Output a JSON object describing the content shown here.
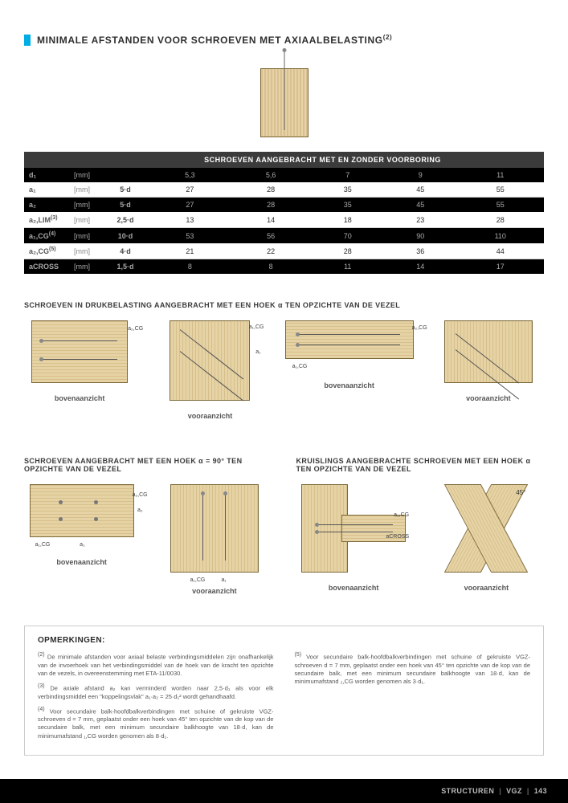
{
  "title": "MINIMALE AFSTANDEN VOOR SCHROEVEN MET AXIAALBELASTING",
  "title_sup": "(2)",
  "table": {
    "header": "SCHROEVEN AANGEBRACHT MET EN ZONDER VOORBORING",
    "cols": [
      "5,3",
      "5,6",
      "7",
      "9",
      "11"
    ],
    "rows": [
      {
        "label": "d₁",
        "unit": "[mm]",
        "formula": "",
        "vals": [
          "5,3",
          "5,6",
          "7",
          "9",
          "11"
        ],
        "dark": true
      },
      {
        "label": "a₁",
        "unit": "[mm]",
        "formula": "5·d",
        "vals": [
          "27",
          "28",
          "35",
          "45",
          "55"
        ],
        "dark": false
      },
      {
        "label": "a₂",
        "unit": "[mm]",
        "formula": "5·d",
        "vals": [
          "27",
          "28",
          "35",
          "45",
          "55"
        ],
        "dark": true
      },
      {
        "label": "a₂,LIM",
        "sup": "(3)",
        "unit": "[mm]",
        "formula": "2,5·d",
        "vals": [
          "13",
          "14",
          "18",
          "23",
          "28"
        ],
        "dark": false
      },
      {
        "label": "a₁,CG",
        "sup": "(4)",
        "unit": "[mm]",
        "formula": "10·d",
        "vals": [
          "53",
          "56",
          "70",
          "90",
          "110"
        ],
        "dark": true
      },
      {
        "label": "a₂,CG",
        "sup": "(5)",
        "unit": "[mm]",
        "formula": "4·d",
        "vals": [
          "21",
          "22",
          "28",
          "36",
          "44"
        ],
        "dark": false
      },
      {
        "label": "aCROSS",
        "unit": "[mm]",
        "formula": "1,5·d",
        "vals": [
          "8",
          "8",
          "11",
          "14",
          "17"
        ],
        "dark": true
      }
    ]
  },
  "section1_title": "SCHROEVEN IN DRUKBELASTING AANGEBRACHT MET EEN HOEK α TEN OPZICHTE VAN DE VEZEL",
  "caps": {
    "top": "bovenaanzicht",
    "front": "vooraanzicht"
  },
  "section2a_title": "SCHROEVEN AANGEBRACHT MET EEN HOEK α = 90° TEN OPZICHTE VAN DE VEZEL",
  "section2b_title": "KRUISLINGS AANGEBRACHTE SCHROEVEN MET EEN HOEK α TEN OPZICHTE VAN DE VEZEL",
  "angle45": "45°",
  "notes": {
    "title": "OPMERKINGEN:",
    "n2": "De minimale afstanden voor axiaal belaste verbindingsmiddelen zijn onafhankelijk van de invoerhoek van het verbindingsmiddel van de hoek van de kracht ten opzichte van de vezels, in overeenstemming met ETA-11/0030.",
    "n3": "De axiale afstand a₂ kan verminderd worden naar 2,5·d₁ als voor elk verbindingsmiddel een \"koppelingsvlak\" a₁·a₂ = 25·d₁² wordt gehandhaafd.",
    "n4": "Voor secundaire balk-hoofdbalkverbindingen met schuine of gekruiste VGZ-schroeven d = 7 mm, geplaatst onder een hoek van 45° ten opzichte van de kop van de secundaire balk, met een minimum secundaire balkhoogte van 18·d, kan de minimumafstand ₁,CG worden genomen als 8·d₁.",
    "n5": "Voor secundaire balk-hoofdbalkverbindingen met schuine of gekruiste VGZ-schroeven d = 7 mm, geplaatst onder een hoek van 45° ten opzichte van de kop van de secundaire balk, met een minimum secundaire balkhoogte van 18·d, kan de minimumafstand ₂,CG worden genomen als 3·d₁."
  },
  "footer": {
    "a": "STRUCTUREN",
    "b": "VGZ",
    "c": "143"
  }
}
